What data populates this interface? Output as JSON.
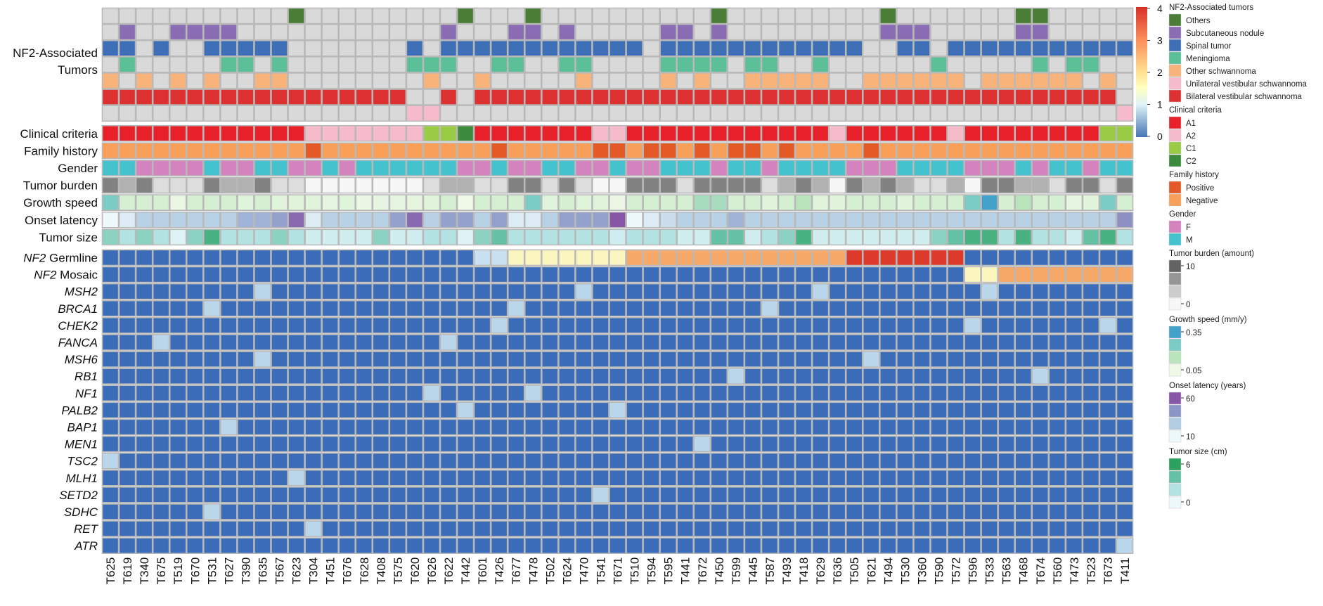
{
  "chart_data": {
    "type": "heatmap",
    "samples": [
      "T625",
      "T619",
      "T340",
      "T675",
      "T519",
      "T670",
      "T531",
      "T627",
      "T390",
      "T635",
      "T567",
      "T623",
      "T304",
      "T451",
      "T676",
      "T628",
      "T408",
      "T575",
      "T620",
      "T626",
      "T622",
      "T442",
      "T601",
      "T426",
      "T677",
      "T478",
      "T502",
      "T624",
      "T470",
      "T541",
      "T671",
      "T510",
      "T594",
      "T595",
      "T441",
      "T672",
      "T450",
      "T599",
      "T445",
      "T587",
      "T493",
      "T418",
      "T629",
      "T636",
      "T505",
      "T621",
      "T494",
      "T530",
      "T360",
      "T590",
      "T572",
      "T596",
      "T533",
      "T563",
      "T468",
      "T674",
      "T560",
      "T473",
      "T523",
      "T673",
      "T411"
    ],
    "nf2_title_line1": "NF2-Associated",
    "nf2_title_line2": "Tumors",
    "nf2_rows": [
      {
        "name": "Others",
        "color": "#4a7d36",
        "present": [
          11,
          21,
          25,
          36,
          46,
          54,
          55
        ]
      },
      {
        "name": "Subcutaneous nodule",
        "color": "#8a6cb5",
        "present": [
          1,
          4,
          5,
          6,
          7,
          20,
          24,
          25,
          27,
          33,
          34,
          36,
          46,
          47,
          48,
          54,
          55
        ]
      },
      {
        "name": "Spinal tumor",
        "color": "#3e6eb6",
        "present": [
          0,
          1,
          3,
          6,
          7,
          8,
          9,
          10,
          18,
          20,
          21,
          22,
          23,
          24,
          25,
          26,
          27,
          28,
          29,
          30,
          31,
          33,
          34,
          35,
          36,
          37,
          38,
          39,
          40,
          41,
          42,
          43,
          44,
          47,
          48,
          50,
          51,
          52,
          53,
          54,
          55,
          56,
          57,
          58,
          59,
          60
        ]
      },
      {
        "name": "Meningioma",
        "color": "#5bbf97",
        "present": [
          1,
          7,
          8,
          10,
          18,
          19,
          20,
          23,
          24,
          27,
          28,
          33,
          34,
          35,
          36,
          38,
          39,
          42,
          49,
          55,
          57,
          58
        ]
      },
      {
        "name": "Other schwannoma",
        "color": "#f8b37a",
        "present": [
          0,
          2,
          4,
          6,
          9,
          10,
          19,
          22,
          28,
          33,
          35,
          38,
          39,
          40,
          41,
          42,
          45,
          46,
          47,
          48,
          49,
          50,
          52,
          53,
          54,
          55,
          56,
          57,
          59
        ]
      },
      {
        "name": "Bilateral vestibular schwannoma",
        "color": "#dd3030",
        "present": [
          0,
          1,
          2,
          3,
          4,
          5,
          6,
          7,
          8,
          9,
          10,
          11,
          12,
          13,
          14,
          15,
          16,
          17,
          20,
          22,
          23,
          24,
          25,
          26,
          27,
          28,
          29,
          30,
          31,
          32,
          33,
          34,
          35,
          36,
          37,
          38,
          39,
          40,
          41,
          42,
          43,
          44,
          45,
          46,
          47,
          48,
          49,
          50,
          51,
          52,
          53,
          54,
          55,
          56,
          57,
          58,
          59
        ]
      },
      {
        "name": "Unilateral vestibular schwannoma",
        "color": "#f6bccb",
        "present": [
          18,
          19,
          60
        ]
      }
    ],
    "annotation_rows": [
      {
        "label": "Clinical criteria",
        "values": [
          "A1",
          "A1",
          "A1",
          "A1",
          "A1",
          "A1",
          "A1",
          "A1",
          "A1",
          "A1",
          "A1",
          "A1",
          "A2",
          "A2",
          "A2",
          "A2",
          "A2",
          "A2",
          "A2",
          "C1",
          "C1",
          "C2",
          "A1",
          "A1",
          "A1",
          "A1",
          "A1",
          "A1",
          "A1",
          "A2",
          "A2",
          "A1",
          "A1",
          "A1",
          "A1",
          "A1",
          "A1",
          "A1",
          "A1",
          "A1",
          "A1",
          "A1",
          "A1",
          "A2",
          "A1",
          "A1",
          "A1",
          "A1",
          "A1",
          "A1",
          "A2",
          "A1",
          "A1",
          "A1",
          "A1",
          "A1",
          "A1",
          "A1",
          "A1",
          "C1",
          "C1"
        ]
      },
      {
        "label": "Family history",
        "values": [
          "Negative",
          "Negative",
          "Negative",
          "Negative",
          "Negative",
          "Negative",
          "Negative",
          "Negative",
          "Negative",
          "Negative",
          "Negative",
          "Negative",
          "Positive",
          "Negative",
          "Negative",
          "Negative",
          "Negative",
          "Negative",
          "Negative",
          "Negative",
          "Negative",
          "Negative",
          "Negative",
          "Positive",
          "Negative",
          "Negative",
          "Negative",
          "Negative",
          "Negative",
          "Positive",
          "Positive",
          "Negative",
          "Positive",
          "Positive",
          "Negative",
          "Positive",
          "Negative",
          "Positive",
          "Positive",
          "Negative",
          "Positive",
          "Negative",
          "Negative",
          "Negative",
          "Negative",
          "Positive",
          "Negative",
          "Negative",
          "Negative",
          "Negative",
          "Negative",
          "Negative",
          "Negative",
          "Negative",
          "Negative",
          "Negative",
          "Negative",
          "Negative",
          "Negative",
          "Negative",
          "Negative"
        ]
      },
      {
        "label": "Gender",
        "values": [
          "M",
          "M",
          "F",
          "F",
          "F",
          "F",
          "M",
          "F",
          "F",
          "M",
          "M",
          "F",
          "F",
          "M",
          "F",
          "M",
          "M",
          "M",
          "M",
          "M",
          "M",
          "F",
          "F",
          "M",
          "F",
          "F",
          "M",
          "M",
          "F",
          "F",
          "M",
          "F",
          "F",
          "M",
          "M",
          "M",
          "F",
          "M",
          "M",
          "F",
          "M",
          "M",
          "M",
          "M",
          "F",
          "F",
          "F",
          "M",
          "M",
          "M",
          "M",
          "F",
          "F",
          "F",
          "M",
          "F",
          "M",
          "M",
          "F",
          "M",
          "M"
        ]
      },
      {
        "label": "Tumor burden",
        "values": [
          8,
          5,
          8,
          2,
          2,
          2,
          8,
          5,
          5,
          8,
          2,
          2,
          0,
          0,
          0,
          0,
          0,
          0,
          0,
          2,
          5,
          5,
          2,
          2,
          8,
          8,
          2,
          8,
          2,
          0,
          0,
          8,
          8,
          8,
          2,
          8,
          8,
          8,
          8,
          2,
          5,
          8,
          5,
          0,
          8,
          5,
          8,
          5,
          2,
          2,
          5,
          0,
          8,
          8,
          5,
          5,
          2,
          8,
          8,
          2,
          8
        ]
      },
      {
        "label": "Growth speed",
        "values": [
          0.25,
          0.1,
          0.1,
          0.1,
          0.06,
          0.1,
          0.1,
          0.1,
          0.08,
          0.1,
          0.08,
          0.08,
          0.08,
          0.07,
          0.08,
          0.06,
          0.07,
          0.07,
          0.07,
          0.08,
          0.1,
          0.0,
          0.1,
          0.1,
          0.1,
          0.25,
          0.08,
          0.1,
          0.08,
          0.08,
          0.06,
          0.1,
          0.1,
          0.1,
          0.1,
          0.18,
          0.18,
          0.1,
          0.1,
          0.08,
          0.1,
          0.15,
          0.08,
          0.08,
          0.1,
          0.1,
          0.1,
          0.08,
          0.1,
          0.1,
          0.1,
          0.25,
          0.35,
          0.1,
          0.15,
          0.1,
          0.1,
          0.07,
          0.08,
          0.25,
          0.1
        ]
      },
      {
        "label": "Onset latency",
        "values": [
          10,
          15,
          25,
          25,
          25,
          25,
          25,
          25,
          35,
          35,
          40,
          55,
          15,
          25,
          25,
          25,
          25,
          40,
          55,
          25,
          40,
          40,
          25,
          40,
          15,
          15,
          25,
          40,
          40,
          40,
          60,
          10,
          15,
          20,
          25,
          25,
          25,
          35,
          25,
          25,
          25,
          25,
          25,
          25,
          25,
          25,
          25,
          25,
          25,
          25,
          25,
          25,
          25,
          25,
          25,
          25,
          25,
          25,
          25,
          25,
          45
        ]
      },
      {
        "label": "Tumor size",
        "values": [
          3,
          2,
          3,
          2,
          0.5,
          3,
          5,
          2,
          2,
          2,
          3,
          2,
          1,
          1,
          1,
          1,
          3,
          1,
          1,
          2,
          2,
          0.5,
          3,
          4,
          2,
          2,
          2,
          2,
          2,
          2,
          1,
          2,
          2,
          2,
          1,
          1,
          4,
          4,
          1,
          2,
          3,
          5,
          1,
          1,
          1,
          1,
          1,
          1,
          1,
          3,
          4,
          5,
          5,
          2,
          5,
          2,
          2,
          1,
          4,
          5,
          2
        ]
      }
    ],
    "mutation_rows": [
      {
        "gene": "NF2",
        "suffix": " Germline",
        "values": [
          "",
          "",
          "",
          "",
          "",
          "",
          "",
          "",
          "",
          "",
          "",
          "",
          "",
          "",
          "",
          "",
          "",
          "",
          "",
          "",
          "",
          "",
          "WT",
          "WT",
          "Germline-weak",
          "Germline-weak",
          "Germline-weak",
          "Germline-weak",
          "Germline-weak",
          "Germline-weak",
          "Germline-weak",
          "Germline",
          "Germline",
          "Germline",
          "Germline",
          "Germline",
          "Germline",
          "Germline",
          "Germline",
          "Germline",
          "Germline",
          "Germline",
          "Germline",
          "Germline",
          "Germline-strong",
          "Germline-strong",
          "Germline-strong",
          "Germline-strong",
          "Germline-strong",
          "Germline-strong",
          "Germline-strong",
          "",
          "",
          "",
          "",
          "",
          "",
          "",
          "",
          "",
          ""
        ]
      },
      {
        "gene": "NF2",
        "suffix": " Mosaic",
        "values": [
          "",
          "",
          "",
          "",
          "",
          "",
          "",
          "",
          "",
          "",
          "",
          "",
          "",
          "",
          "",
          "",
          "",
          "",
          "",
          "",
          "",
          "",
          "",
          "",
          "",
          "",
          "",
          "",
          "",
          "",
          "",
          "",
          "",
          "",
          "",
          "",
          "",
          "",
          "",
          "",
          "",
          "",
          "",
          "",
          "",
          "",
          "",
          "",
          "",
          "",
          "",
          "Mosaic-weak",
          "Mosaic-weak",
          "Mosaic",
          "Mosaic",
          "Mosaic",
          "Mosaic",
          "Mosaic",
          "Mosaic",
          "Mosaic",
          "Mosaic"
        ]
      },
      {
        "gene": "MSH2",
        "suffix": "",
        "hits": [
          9,
          28,
          42,
          52
        ]
      },
      {
        "gene": "BRCA1",
        "suffix": "",
        "hits": [
          6,
          24,
          39
        ]
      },
      {
        "gene": "CHEK2",
        "suffix": "",
        "hits": [
          23,
          51,
          59
        ]
      },
      {
        "gene": "FANCA",
        "suffix": "",
        "hits": [
          3,
          20
        ]
      },
      {
        "gene": "MSH6",
        "suffix": "",
        "hits": [
          9,
          45
        ]
      },
      {
        "gene": "RB1",
        "suffix": "",
        "hits": [
          37,
          55
        ]
      },
      {
        "gene": "NF1",
        "suffix": "",
        "hits": [
          19,
          25
        ]
      },
      {
        "gene": "PALB2",
        "suffix": "",
        "hits": [
          21,
          30
        ]
      },
      {
        "gene": "BAP1",
        "suffix": "",
        "hits": [
          7
        ]
      },
      {
        "gene": "MEN1",
        "suffix": "",
        "hits": [
          35
        ]
      },
      {
        "gene": "TSC2",
        "suffix": "",
        "hits": [
          0
        ]
      },
      {
        "gene": "MLH1",
        "suffix": "",
        "hits": [
          11
        ]
      },
      {
        "gene": "SETD2",
        "suffix": "",
        "hits": [
          29
        ]
      },
      {
        "gene": "SDHC",
        "suffix": "",
        "hits": [
          6
        ]
      },
      {
        "gene": "RET",
        "suffix": "",
        "hits": [
          12
        ]
      },
      {
        "gene": "ATR",
        "suffix": "",
        "hits": [
          60
        ]
      }
    ],
    "colorbar": {
      "ticks": [
        "4",
        "3",
        "2",
        "1",
        "0"
      ],
      "range": [
        0,
        4
      ]
    },
    "legend": {
      "sections": [
        {
          "title": "NF2-Associated tumors",
          "items": [
            {
              "label": "Others",
              "color": "#4a7d36"
            },
            {
              "label": "Subcutaneous nodule",
              "color": "#8a6cb5"
            },
            {
              "label": "Spinal tumor",
              "color": "#3e6eb6"
            },
            {
              "label": "Meningioma",
              "color": "#5bbf97"
            },
            {
              "label": "Other schwannoma",
              "color": "#f8b37a"
            },
            {
              "label": "Unilateral vestibular schwannoma",
              "color": "#f6bccb"
            },
            {
              "label": "Bilateral vestibular schwannoma",
              "color": "#dd3030"
            }
          ]
        },
        {
          "title": "Clinical criteria",
          "items": [
            {
              "label": "A1",
              "color": "#e8202a"
            },
            {
              "label": "A2",
              "color": "#f6bccb"
            },
            {
              "label": "C1",
              "color": "#99cc44"
            },
            {
              "label": "C2",
              "color": "#3c8a3c"
            }
          ]
        },
        {
          "title": "Family history",
          "items": [
            {
              "label": "Positive",
              "color": "#e35a26"
            },
            {
              "label": "Negative",
              "color": "#f8a05a"
            }
          ]
        },
        {
          "title": "Gender",
          "items": [
            {
              "label": "F",
              "color": "#d583bf"
            },
            {
              "label": "M",
              "color": "#44c3cf"
            }
          ]
        },
        {
          "title": "Tumor burden (amount)",
          "gradient": [
            "#636363",
            "#969696",
            "#cccccc",
            "#f7f7f7"
          ],
          "top_label": "10",
          "bottom_label": "0"
        },
        {
          "title": "Growth speed (mm/y)",
          "gradient": [
            "#43a2ca",
            "#7bccc4",
            "#bae4bc",
            "#f0f9e8"
          ],
          "top_label": "0.35",
          "bottom_label": "0.05"
        },
        {
          "title": "Onset latency (years)",
          "gradient": [
            "#8856a7",
            "#8c96c6",
            "#b3cde3",
            "#edf8fb"
          ],
          "top_label": "60",
          "bottom_label": "10"
        },
        {
          "title": "Tumor size (cm)",
          "gradient": [
            "#2ca25f",
            "#66c2a4",
            "#b2e2e2",
            "#edf8fb"
          ],
          "top_label": "6",
          "bottom_label": "0"
        }
      ]
    },
    "colors": {
      "na": "#d9d9d9",
      "mut_base": "#3b6cb7",
      "mut_hit": "#b9d6ea",
      "wt": "#c9e0f0",
      "germline_weak": "#fbf5c0",
      "germline": "#f7a96a",
      "germline_strong": "#de3a2c",
      "mosaic_weak": "#fbf5c0",
      "mosaic": "#f7a96a",
      "clinical": {
        "A1": "#e8202a",
        "A2": "#f6bccb",
        "C1": "#99cc44",
        "C2": "#3c8a3c"
      },
      "family": {
        "Positive": "#e35a26",
        "Negative": "#f8a05a"
      },
      "gender": {
        "F": "#d583bf",
        "M": "#44c3cf"
      }
    }
  }
}
